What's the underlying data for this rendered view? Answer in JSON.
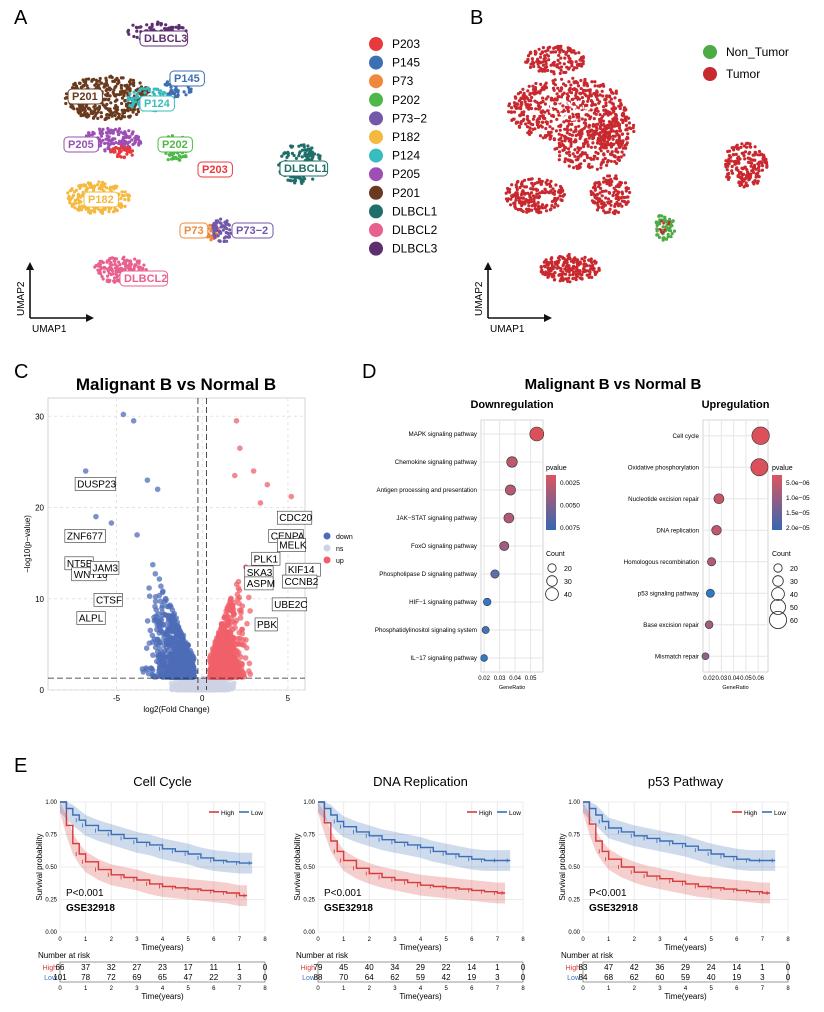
{
  "panels": {
    "A": "A",
    "B": "B",
    "C": "C",
    "D": "D",
    "E": "E"
  },
  "colors": {
    "P203": "#e8393c",
    "P145": "#3e6fb2",
    "P73": "#f0883b",
    "P202": "#4fb848",
    "P73-2": "#7357a8",
    "P182": "#f5b93f",
    "P124": "#38bcbf",
    "P205": "#9d4fb3",
    "P201": "#6a3a1f",
    "DLBCL1": "#1f6e6a",
    "DLBCL2": "#e8608d",
    "DLBCL3": "#5e2f70",
    "tumor": "#c8282e",
    "non_tumor": "#4daa45",
    "down": "#4d6cb8",
    "up": "#f0606a",
    "ns": "#cdd3e4",
    "high": "#d73a3a",
    "low": "#3a6fb8"
  },
  "panel_a": {
    "axis_x": "UMAP1",
    "axis_y": "UMAP2",
    "clusters": [
      "P203",
      "P145",
      "P73",
      "P202",
      "P73−2",
      "P182",
      "P124",
      "P205",
      "P201",
      "DLBCL1",
      "DLBCL2",
      "DLBCL3"
    ],
    "legend_keys": [
      "P203",
      "P145",
      "P73",
      "P202",
      "P73-2",
      "P182",
      "P124",
      "P205",
      "P201",
      "DLBCL1",
      "DLBCL2",
      "DLBCL3"
    ]
  },
  "panel_b": {
    "axis_x": "UMAP1",
    "axis_y": "UMAP2",
    "legend": [
      "Non_Tumor",
      "Tumor"
    ]
  },
  "panel_c": {
    "title": "Malignant B vs Normal B",
    "xlabel": "log2(Fold Change)",
    "ylabel": "−log10(p−value)",
    "legend": [
      "down",
      "ns",
      "up"
    ]
  },
  "panel_d": {
    "title": "Malignant B vs Normal B"
  },
  "chart_data": [
    {
      "type": "scatter",
      "title": "Malignant B vs Normal B",
      "xlabel": "log2(Fold Change)",
      "ylabel": "−log10(p−value)",
      "xlim": [
        -9,
        6
      ],
      "ylim": [
        0,
        32
      ],
      "xticks": [
        -5,
        0,
        5
      ],
      "yticks": [
        0,
        10,
        20,
        30
      ],
      "thresholds": {
        "x": [
          -0.25,
          0.25
        ],
        "y": 1.3
      },
      "labeled_genes": [
        {
          "name": "DUSP23",
          "x": -7.3,
          "y": 22.2,
          "group": "down"
        },
        {
          "name": "ZNF677",
          "x": -7.9,
          "y": 16.5,
          "group": "down"
        },
        {
          "name": "NT5E",
          "x": -7.9,
          "y": 13.5,
          "group": "down"
        },
        {
          "name": "WNT16",
          "x": -7.5,
          "y": 12.3,
          "group": "down"
        },
        {
          "name": "JAM3",
          "x": -6.4,
          "y": 13.0,
          "group": "down"
        },
        {
          "name": "CTSF",
          "x": -6.2,
          "y": 9.5,
          "group": "down"
        },
        {
          "name": "ALPL",
          "x": -7.2,
          "y": 7.5,
          "group": "down"
        },
        {
          "name": "CDC20",
          "x": 4.5,
          "y": 18.5,
          "group": "up"
        },
        {
          "name": "CENPA",
          "x": 4.0,
          "y": 16.5,
          "group": "up"
        },
        {
          "name": "MELK",
          "x": 4.5,
          "y": 15.5,
          "group": "up"
        },
        {
          "name": "PLK1",
          "x": 3.0,
          "y": 14.0,
          "group": "up"
        },
        {
          "name": "SKA3",
          "x": 2.6,
          "y": 12.5,
          "group": "up"
        },
        {
          "name": "KIF14",
          "x": 5.0,
          "y": 12.8,
          "group": "up"
        },
        {
          "name": "ASPM",
          "x": 2.6,
          "y": 11.3,
          "group": "up"
        },
        {
          "name": "CCNB2",
          "x": 4.8,
          "y": 11.5,
          "group": "up"
        },
        {
          "name": "UBE2C",
          "x": 4.2,
          "y": 9.0,
          "group": "up"
        },
        {
          "name": "PBK",
          "x": 3.2,
          "y": 6.8,
          "group": "up"
        }
      ]
    },
    {
      "type": "scatter",
      "title": "Downregulation",
      "xlabel": "GeneRatio",
      "xticks": [
        0.02,
        0.03,
        0.04,
        0.05
      ],
      "xlim": [
        0.018,
        0.058
      ],
      "categories": [
        "MAPK signaling pathway",
        "Chemokine signaling pathway",
        "Antigen processing and presentation",
        "JAK−STAT signaling pathway",
        "FoxO signaling pathway",
        "Phospholipase D signaling pathway",
        "HIF−1 signaling pathway",
        "Phosphatidylinositol signaling system",
        "IL−17 signaling pathway"
      ],
      "gene_ratio": [
        0.054,
        0.038,
        0.037,
        0.036,
        0.033,
        0.027,
        0.022,
        0.021,
        0.02
      ],
      "count": [
        45,
        30,
        28,
        27,
        24,
        20,
        16,
        15,
        13
      ],
      "pvalue": [
        0.0011,
        0.0022,
        0.0025,
        0.0028,
        0.0035,
        0.0062,
        0.0078,
        0.0072,
        0.008
      ],
      "color_legend": {
        "title": "pvalue",
        "labels": [
          "0.0025",
          "0.0050",
          "0.0075"
        ]
      },
      "size_legend": {
        "title": "Count",
        "labels": [
          "20",
          "30",
          "40"
        ]
      }
    },
    {
      "type": "scatter",
      "title": "Upregulation",
      "xlabel": "GeneRatio",
      "xticks": [
        0.02,
        0.03,
        0.04,
        0.05,
        0.06
      ],
      "xtick_labels": [
        "0.02",
        "0.03",
        "0.04",
        "0.05",
        "0.06"
      ],
      "xlim": [
        0.015,
        0.068
      ],
      "categories": [
        "Cell cycle",
        "Oxidative phosphorylation",
        "Nucleotide excision repair",
        "DNA replication",
        "Homologous recombination",
        "p53 signaling pathway",
        "Base excision repair",
        "Mismatch repair"
      ],
      "gene_ratio": [
        0.062,
        0.061,
        0.028,
        0.026,
        0.022,
        0.021,
        0.02,
        0.017
      ],
      "count": [
        62,
        60,
        27,
        25,
        20,
        19,
        17,
        14
      ],
      "pvalue": [
        1e-07,
        2e-07,
        3e-06,
        4e-06,
        6e-06,
        2.3e-05,
        8e-06,
        1e-05
      ],
      "color_legend": {
        "title": "pvalue",
        "labels": [
          "5.0e−06",
          "1.0e−05",
          "1.5e−05",
          "2.0e−05"
        ]
      },
      "size_legend": {
        "title": "Count",
        "labels": [
          "20",
          "30",
          "40",
          "50",
          "60"
        ]
      }
    },
    {
      "type": "line",
      "title": "Cell Cycle",
      "xlabel": "Time(years)",
      "ylabel": "Survival probability",
      "xlim": [
        0,
        8
      ],
      "ylim": [
        0,
        1
      ],
      "xticks": [
        0,
        1,
        2,
        3,
        4,
        5,
        6,
        7,
        8
      ],
      "yticks": [
        0,
        0.25,
        0.5,
        0.75,
        1.0
      ],
      "ytick_labels": [
        "0.00",
        "0.25",
        "0.50",
        "0.75",
        "1.00"
      ],
      "pvalue_text": "P<0.001",
      "dataset": "GSE32918",
      "legend": [
        "High",
        "Low"
      ],
      "series": [
        {
          "name": "High",
          "x": [
            0,
            0.25,
            0.5,
            0.75,
            1,
            1.5,
            2,
            2.5,
            3,
            3.5,
            4,
            4.5,
            5,
            5.5,
            6,
            6.5,
            7,
            7.3
          ],
          "y": [
            1.0,
            0.82,
            0.68,
            0.6,
            0.54,
            0.48,
            0.44,
            0.42,
            0.4,
            0.37,
            0.35,
            0.34,
            0.33,
            0.32,
            0.31,
            0.3,
            0.28,
            0.28
          ]
        },
        {
          "name": "Low",
          "x": [
            0,
            0.25,
            0.5,
            0.75,
            1,
            1.5,
            2,
            2.5,
            3,
            3.5,
            4,
            4.5,
            5,
            5.5,
            6,
            6.5,
            7,
            7.5
          ],
          "y": [
            1.0,
            0.95,
            0.9,
            0.86,
            0.82,
            0.78,
            0.75,
            0.72,
            0.69,
            0.67,
            0.64,
            0.62,
            0.6,
            0.57,
            0.55,
            0.54,
            0.53,
            0.53
          ]
        }
      ],
      "risk_table": {
        "high": [
          "66",
          "37",
          "32",
          "27",
          "23",
          "17",
          "11",
          "1",
          "0"
        ],
        "low": [
          "101",
          "78",
          "72",
          "69",
          "65",
          "47",
          "22",
          "3",
          "0"
        ]
      }
    },
    {
      "type": "line",
      "title": "DNA Replication",
      "xlabel": "Time(years)",
      "ylabel": "Survival probability",
      "xlim": [
        0,
        8
      ],
      "ylim": [
        0,
        1
      ],
      "xticks": [
        0,
        1,
        2,
        3,
        4,
        5,
        6,
        7,
        8
      ],
      "yticks": [
        0,
        0.25,
        0.5,
        0.75,
        1.0
      ],
      "ytick_labels": [
        "0.00",
        "0.25",
        "0.50",
        "0.75",
        "1.00"
      ],
      "pvalue_text": "P<0.001",
      "dataset": "GSE32918",
      "legend": [
        "High",
        "Low"
      ],
      "series": [
        {
          "name": "High",
          "x": [
            0,
            0.25,
            0.5,
            0.75,
            1,
            1.5,
            2,
            2.5,
            3,
            3.5,
            4,
            4.5,
            5,
            5.5,
            6,
            6.5,
            7,
            7.3
          ],
          "y": [
            1.0,
            0.84,
            0.7,
            0.62,
            0.55,
            0.49,
            0.45,
            0.42,
            0.4,
            0.38,
            0.36,
            0.35,
            0.34,
            0.33,
            0.32,
            0.31,
            0.3,
            0.3
          ]
        },
        {
          "name": "Low",
          "x": [
            0,
            0.25,
            0.5,
            0.75,
            1,
            1.5,
            2,
            2.5,
            3,
            3.5,
            4,
            4.5,
            5,
            5.5,
            6,
            6.5,
            7,
            7.5
          ],
          "y": [
            1.0,
            0.95,
            0.9,
            0.85,
            0.81,
            0.77,
            0.74,
            0.71,
            0.69,
            0.67,
            0.65,
            0.62,
            0.6,
            0.58,
            0.56,
            0.55,
            0.55,
            0.55
          ]
        }
      ],
      "risk_table": {
        "high": [
          "79",
          "45",
          "40",
          "34",
          "29",
          "22",
          "14",
          "1",
          "0"
        ],
        "low": [
          "88",
          "70",
          "64",
          "62",
          "59",
          "42",
          "19",
          "3",
          "0"
        ]
      }
    },
    {
      "type": "line",
      "title": "p53 Pathway",
      "xlabel": "Time(years)",
      "ylabel": "Survival probability",
      "xlim": [
        0,
        8
      ],
      "ylim": [
        0,
        1
      ],
      "xticks": [
        0,
        1,
        2,
        3,
        4,
        5,
        6,
        7,
        8
      ],
      "yticks": [
        0,
        0.25,
        0.5,
        0.75,
        1.0
      ],
      "ytick_labels": [
        "0.00",
        "0.25",
        "0.50",
        "0.75",
        "1.00"
      ],
      "pvalue_text": "P<0.001",
      "dataset": "GSE32918",
      "legend": [
        "High",
        "Low"
      ],
      "series": [
        {
          "name": "High",
          "x": [
            0,
            0.25,
            0.5,
            0.75,
            1,
            1.5,
            2,
            2.5,
            3,
            3.5,
            4,
            4.5,
            5,
            5.5,
            6,
            6.5,
            7,
            7.3
          ],
          "y": [
            1.0,
            0.83,
            0.7,
            0.62,
            0.56,
            0.5,
            0.46,
            0.43,
            0.41,
            0.39,
            0.37,
            0.35,
            0.34,
            0.33,
            0.32,
            0.31,
            0.3,
            0.3
          ]
        },
        {
          "name": "Low",
          "x": [
            0,
            0.25,
            0.5,
            0.75,
            1,
            1.5,
            2,
            2.5,
            3,
            3.5,
            4,
            4.5,
            5,
            5.5,
            6,
            6.5,
            7,
            7.5
          ],
          "y": [
            1.0,
            0.95,
            0.9,
            0.85,
            0.8,
            0.77,
            0.74,
            0.72,
            0.7,
            0.68,
            0.66,
            0.63,
            0.6,
            0.58,
            0.56,
            0.55,
            0.55,
            0.55
          ]
        }
      ],
      "risk_table": {
        "high": [
          "83",
          "47",
          "42",
          "36",
          "29",
          "24",
          "14",
          "1",
          "0"
        ],
        "low": [
          "84",
          "68",
          "62",
          "60",
          "59",
          "40",
          "19",
          "3",
          "0"
        ]
      }
    }
  ],
  "panel_e": {
    "risk_title": "Number at risk",
    "risk_rows": [
      "High",
      "Low"
    ],
    "risk_xticks": [
      "0",
      "1",
      "2",
      "3",
      "4",
      "5",
      "6",
      "7",
      "8"
    ]
  }
}
